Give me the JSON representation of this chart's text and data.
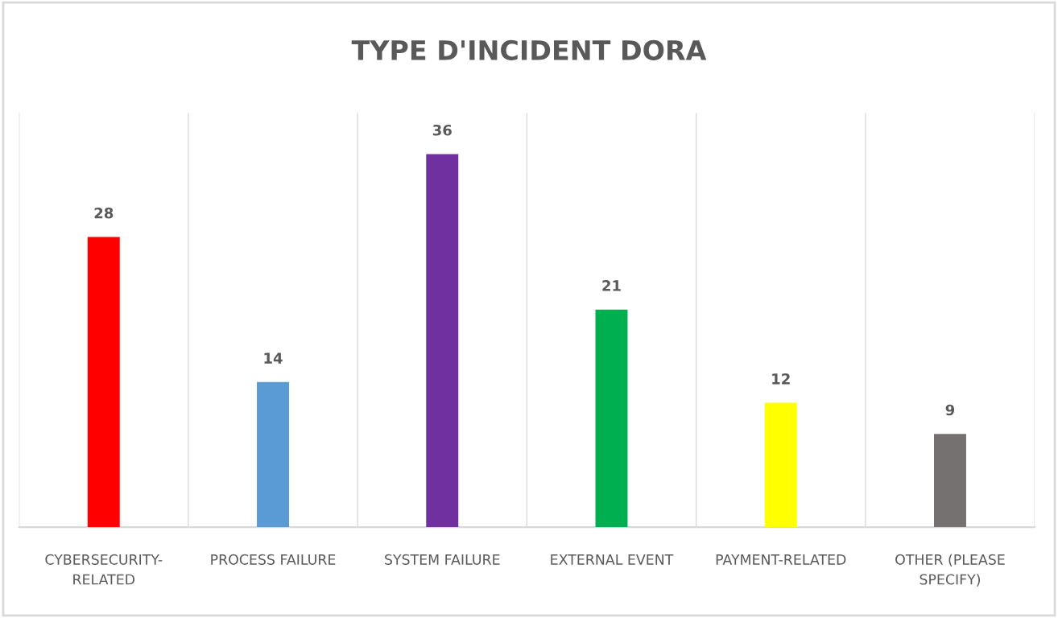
{
  "chart_data": {
    "type": "bar",
    "title": "TYPE D'INCIDENT DORA",
    "categories": [
      "CYBERSECURITY-RELATED",
      "PROCESS FAILURE",
      "SYSTEM FAILURE",
      "EXTERNAL EVENT",
      "PAYMENT-RELATED",
      "OTHER (PLEASE SPECIFY)"
    ],
    "values": [
      28,
      14,
      36,
      21,
      12,
      9
    ],
    "colors": [
      "#ff0000",
      "#5b9bd5",
      "#7030a0",
      "#00b050",
      "#ffff00",
      "#767171"
    ],
    "data_labels": true,
    "grid": "x",
    "tick_labels": "x"
  }
}
